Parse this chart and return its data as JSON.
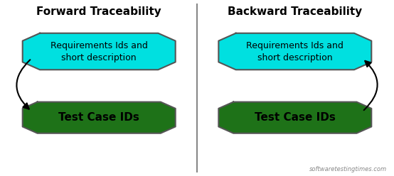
{
  "bg_color": "#ffffff",
  "panel_bg": "#ffffff",
  "divider_color": "#888888",
  "left_title": "Forward Traceability",
  "right_title": "Backward Traceability",
  "req_text": "Requirements Ids and\nshort description",
  "test_text": "Test Case IDs",
  "cyan_color": "#00e0e0",
  "green_color": "#1e7218",
  "watermark": "softwaretestingtimes.com",
  "title_fontsize": 11,
  "req_text_fontsize": 9,
  "test_text_fontsize": 11
}
